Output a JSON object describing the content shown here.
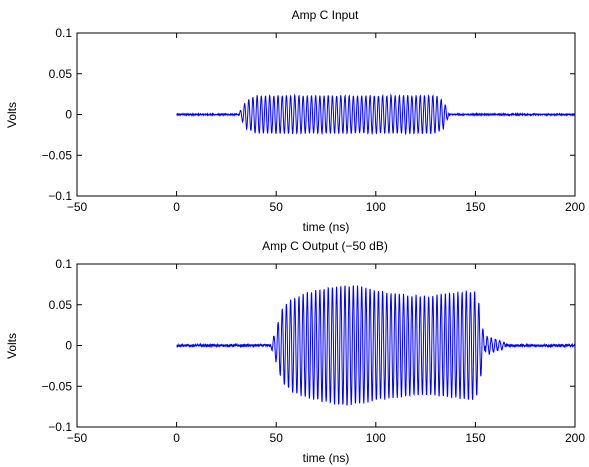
{
  "chart_data": [
    {
      "type": "line",
      "title": "Amp C Input",
      "xlabel": "time (ns)",
      "ylabel": "Volts",
      "xlim": [
        -50,
        200
      ],
      "ylim": [
        -0.1,
        0.1
      ],
      "xticks": [
        -50,
        0,
        50,
        100,
        150,
        200
      ],
      "xtick_labels": [
        "−50",
        "0",
        "50",
        "100",
        "150",
        "200"
      ],
      "yticks": [
        0.1,
        0.05,
        0,
        -0.05,
        -0.1
      ],
      "ytick_labels": [
        "0.1",
        "0.05",
        "0",
        "−0.05",
        "−0.1"
      ],
      "grid": false,
      "line_color": "#0000ff",
      "series": [
        {
          "signal": "gated sinusoid burst",
          "trace_start_ns": 0,
          "trace_end_ns": 200,
          "burst_start_ns": 31,
          "burst_end_ns": 137,
          "carrier_period_ns": 2.1,
          "peak_amplitude_V": 0.023,
          "rise_time_ns": 6,
          "fall_time_ns": 6,
          "noise_floor_V": 0.0015,
          "envelope": [
            [
              31,
              0.0
            ],
            [
              35,
              0.017
            ],
            [
              40,
              0.023
            ],
            [
              60,
              0.023
            ],
            [
              100,
              0.023
            ],
            [
              130,
              0.023
            ],
            [
              134,
              0.017
            ],
            [
              137,
              0.0
            ]
          ]
        }
      ]
    },
    {
      "type": "line",
      "title": "Amp C Output (−50 dB)",
      "xlabel": "time (ns)",
      "ylabel": "Volts",
      "xlim": [
        -50,
        200
      ],
      "ylim": [
        -0.1,
        0.1
      ],
      "xticks": [
        -50,
        0,
        50,
        100,
        150,
        200
      ],
      "xtick_labels": [
        "−50",
        "0",
        "50",
        "100",
        "150",
        "200"
      ],
      "yticks": [
        0.1,
        0.05,
        0,
        -0.05,
        -0.1
      ],
      "ytick_labels": [
        "0.1",
        "0.05",
        "0",
        "−0.05",
        "−0.1"
      ],
      "grid": false,
      "line_color": "#0000ff",
      "series": [
        {
          "signal": "amplified burst with envelope ripple",
          "trace_start_ns": 0,
          "trace_end_ns": 200,
          "burst_start_ns": 47,
          "burst_end_ns": 155,
          "carrier_period_ns": 2.1,
          "noise_floor_V": 0.003,
          "envelope": [
            [
              47,
              0.0
            ],
            [
              50,
              0.02
            ],
            [
              53,
              0.045
            ],
            [
              58,
              0.057
            ],
            [
              65,
              0.064
            ],
            [
              75,
              0.07
            ],
            [
              85,
              0.074
            ],
            [
              95,
              0.071
            ],
            [
              105,
              0.065
            ],
            [
              115,
              0.062
            ],
            [
              125,
              0.06
            ],
            [
              135,
              0.063
            ],
            [
              145,
              0.066
            ],
            [
              150,
              0.066
            ],
            [
              152,
              0.05
            ],
            [
              155,
              0.0
            ]
          ],
          "tail_ringing": [
            [
              155,
              0.012
            ],
            [
              165,
              0.003
            ]
          ]
        }
      ]
    }
  ]
}
